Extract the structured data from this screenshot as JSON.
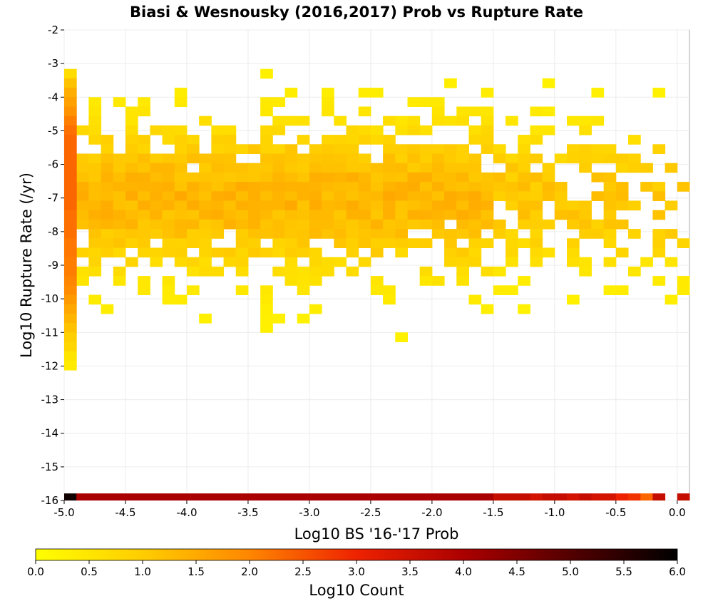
{
  "chart_data": {
    "type": "heatmap",
    "title": "Biasi & Wesnousky (2016,2017) Prob vs Rupture Rate",
    "xlabel": "Log10 BS '16-'17 Prob",
    "ylabel": "Log10 Rupture Rate (/yr)",
    "xlim": [
      -5.0,
      0.1
    ],
    "ylim": [
      -16,
      -2
    ],
    "x_ticks": [
      "-5.0",
      "-4.5",
      "-4.0",
      "-3.5",
      "-3.0",
      "-2.5",
      "-2.0",
      "-1.5",
      "-1.0",
      "-0.5",
      "0.0"
    ],
    "y_ticks": [
      "-2",
      "-3",
      "-4",
      "-5",
      "-6",
      "-7",
      "-8",
      "-9",
      "-10",
      "-11",
      "-12",
      "-13",
      "-14",
      "-15",
      "-16"
    ],
    "grid": true,
    "bin_width_x": 0.1,
    "bin_width_y": 0.28,
    "colorbar": {
      "label": "Log10 Count",
      "range": [
        0.0,
        6.0
      ],
      "ticks": [
        "0.0",
        "0.5",
        "1.0",
        "1.5",
        "2.0",
        "2.5",
        "3.0",
        "3.5",
        "4.0",
        "4.5",
        "5.0",
        "5.5",
        "6.0"
      ],
      "colormap": [
        "#ffff00",
        "#ffbb00",
        "#ff7700",
        "#ee2200",
        "#aa0000",
        "#550000",
        "#000000"
      ]
    },
    "x_bin_centers": [
      -4.95,
      -4.85,
      -4.75,
      -4.65,
      -4.55,
      -4.45,
      -4.35,
      -4.25,
      -4.15,
      -4.05,
      -3.95,
      -3.85,
      -3.75,
      -3.65,
      -3.55,
      -3.45,
      -3.35,
      -3.25,
      -3.15,
      -3.05,
      -2.95,
      -2.85,
      -2.75,
      -2.65,
      -2.55,
      -2.45,
      -2.35,
      -2.25,
      -2.15,
      -2.05,
      -1.95,
      -1.85,
      -1.75,
      -1.65,
      -1.55,
      -1.45,
      -1.35,
      -1.25,
      -1.15,
      -1.05,
      -0.95,
      -0.85,
      -0.75,
      -0.65,
      -0.55,
      -0.45,
      -0.35,
      -0.25,
      -0.15,
      -0.05,
      0.05
    ],
    "y_bin_centers": [
      -3.3,
      -3.58,
      -3.86,
      -4.14,
      -4.42,
      -4.7,
      -4.98,
      -5.26,
      -5.54,
      -5.82,
      -6.1,
      -6.38,
      -6.66,
      -6.94,
      -7.22,
      -7.5,
      -7.78,
      -8.06,
      -8.34,
      -8.62,
      -8.9,
      -9.18,
      -9.46,
      -9.74,
      -10.02,
      -10.3,
      -10.58,
      -10.86,
      -11.14,
      -11.42,
      -11.7,
      -11.98
    ],
    "bottom_row_y": -15.93,
    "bottom_row_values": [
      5.8,
      4.0,
      4.0,
      4.0,
      4.0,
      4.0,
      4.0,
      4.0,
      4.0,
      4.0,
      4.0,
      4.0,
      4.0,
      4.0,
      4.0,
      4.0,
      4.0,
      4.0,
      4.0,
      4.0,
      4.0,
      4.0,
      4.0,
      4.0,
      4.0,
      4.0,
      4.0,
      4.0,
      4.0,
      4.0,
      4.0,
      4.0,
      4.0,
      4.0,
      4.0,
      3.6,
      3.6,
      3.6,
      3.4,
      3.6,
      3.6,
      3.4,
      3.6,
      3.4,
      3.4,
      3.0,
      2.8,
      2.2,
      3.6,
      null,
      3.6
    ],
    "left_column_values": [
      0.5,
      0.9,
      1.2,
      1.4,
      1.6,
      1.9,
      2.1,
      2.2,
      2.2,
      2.2,
      2.2,
      2.2,
      2.2,
      2.2,
      2.2,
      2.1,
      2.1,
      2.1,
      2.0,
      2.0,
      1.9,
      1.9,
      1.8,
      1.7,
      1.5,
      1.3,
      1.1,
      0.9,
      0.7,
      0.6,
      0.4,
      0.3
    ],
    "cells_description": "Sparse cells of log10 count ~0.1–1.3 spanning x=-4.9..0.05 and y=-3.0..-12.1, densest (about 0.8–1.3) for y between -5 and -9"
  }
}
